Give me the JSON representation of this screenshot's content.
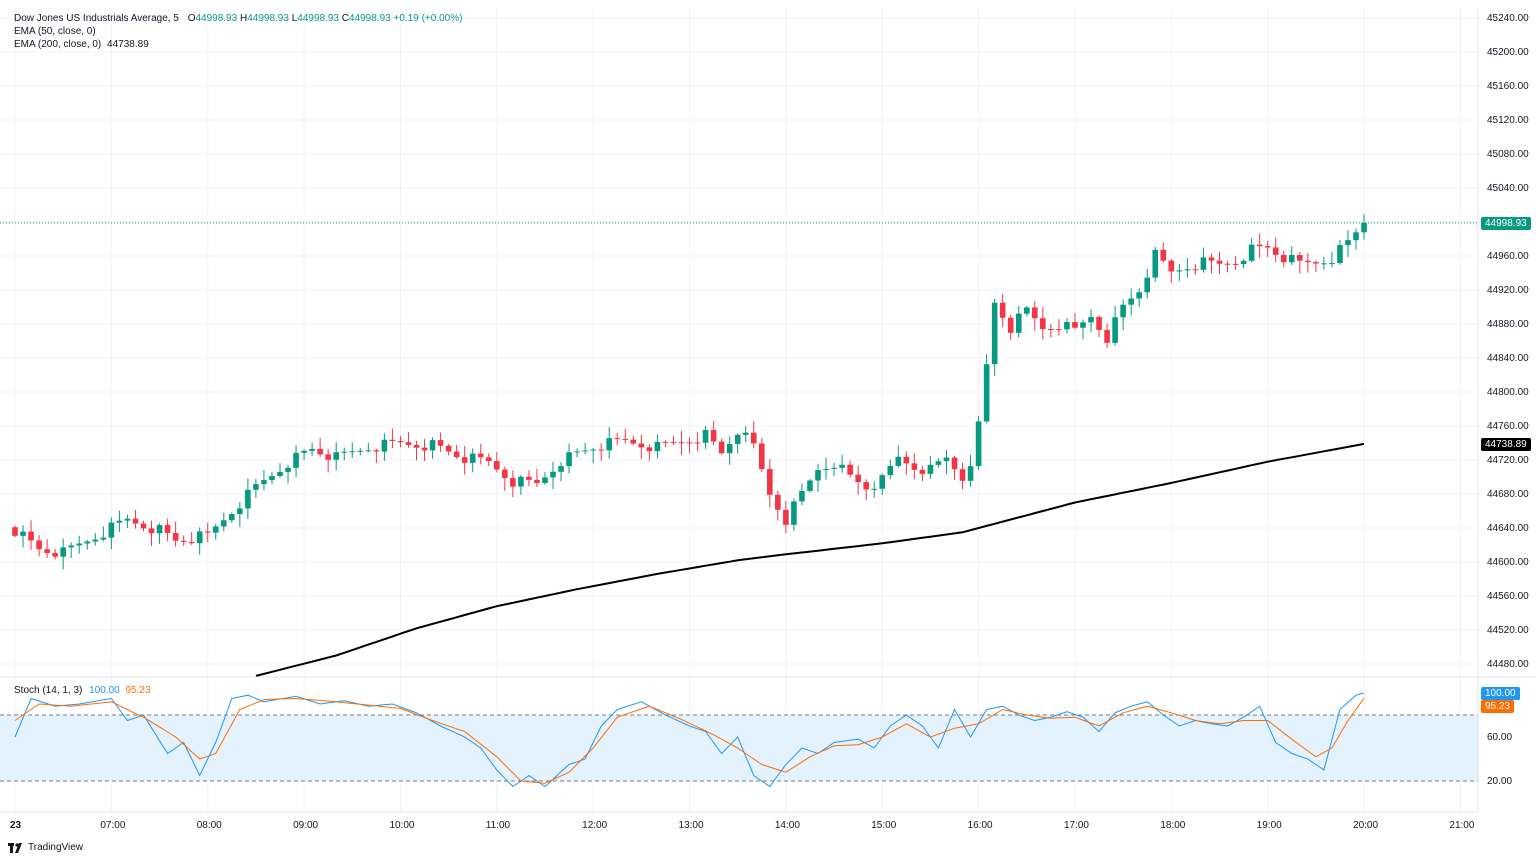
{
  "brand": {
    "name": "TradingView"
  },
  "legend": {
    "symbol": "Dow Jones US Industrials Average, 5",
    "o_label": "O",
    "o": "44998.93",
    "h_label": "H",
    "h": "44998.93",
    "l_label": "L",
    "l": "44998.93",
    "c_label": "C",
    "c": "44998.93",
    "change": "+0.19 (+0.00%)",
    "ema50": "EMA (50, close, 0)",
    "ema200": "EMA (200, close, 0)",
    "ema200_value": "44738.89"
  },
  "stoch_legend": {
    "name": "Stoch (14, 1, 3)",
    "k": "100.00",
    "d": "95.23"
  },
  "price_tags": {
    "last": "44998.93",
    "ema200": "44738.89",
    "stoch_k": "100.00",
    "stoch_d": "95.23"
  },
  "colors": {
    "up": "#089981",
    "down": "#f23645",
    "ema200": "#000000",
    "stoch_k": "#2196f3",
    "stoch_d": "#ff6d00",
    "band": "#e3f2fd"
  },
  "chart_data": [
    {
      "type": "candlestick",
      "title": "Dow Jones US Industrials Average, 5",
      "interval": "5 min",
      "y_ticks": [
        44480,
        44520,
        44560,
        44600,
        44640,
        44680,
        44720,
        44760,
        44800,
        44840,
        44880,
        44920,
        44960,
        45000,
        45040,
        45080,
        45120,
        45160,
        45200,
        45240
      ],
      "y_tick_labels": [
        "44480.00",
        "44520.00",
        "44560.00",
        "44600.00",
        "44640.00",
        "44680.00",
        "44720.00",
        "44760.00",
        "44800.00",
        "44840.00",
        "44880.00",
        "44920.00",
        "44960.00",
        "45000.00",
        "45040.00",
        "45080.00",
        "45120.00",
        "45160.00",
        "45200.00",
        "45240.00"
      ],
      "ylim": [
        44465,
        45250
      ],
      "x_ticks": [
        "23",
        "07:00",
        "08:00",
        "09:00",
        "10:00",
        "11:00",
        "12:00",
        "13:00",
        "14:00",
        "15:00",
        "16:00",
        "17:00",
        "18:00",
        "19:00",
        "20:00",
        "21:00"
      ],
      "x_tick_index": [
        0,
        12,
        24,
        36,
        48,
        60,
        72,
        84,
        96,
        108,
        120,
        132,
        144,
        156,
        168,
        180
      ],
      "anchors": [
        [
          0,
          44638
        ],
        [
          3,
          44615
        ],
        [
          6,
          44610
        ],
        [
          10,
          44630
        ],
        [
          14,
          44650
        ],
        [
          18,
          44638
        ],
        [
          20,
          44625
        ],
        [
          24,
          44630
        ],
        [
          27,
          44660
        ],
        [
          30,
          44688
        ],
        [
          34,
          44718
        ],
        [
          37,
          44733
        ],
        [
          40,
          44722
        ],
        [
          44,
          44735
        ],
        [
          48,
          44740
        ],
        [
          52,
          44738
        ],
        [
          56,
          44722
        ],
        [
          59,
          44717
        ],
        [
          62,
          44695
        ],
        [
          65,
          44692
        ],
        [
          68,
          44720
        ],
        [
          72,
          44735
        ],
        [
          76,
          44742
        ],
        [
          80,
          44735
        ],
        [
          84,
          44745
        ],
        [
          86,
          44750
        ],
        [
          88,
          44728
        ],
        [
          90,
          44755
        ],
        [
          92,
          44735
        ],
        [
          94,
          44680
        ],
        [
          96,
          44650
        ],
        [
          98,
          44680
        ],
        [
          100,
          44710
        ],
        [
          102,
          44718
        ],
        [
          104,
          44700
        ],
        [
          106,
          44688
        ],
        [
          108,
          44695
        ],
        [
          110,
          44722
        ],
        [
          112,
          44712
        ],
        [
          114,
          44708
        ],
        [
          116,
          44722
        ],
        [
          118,
          44700
        ],
        [
          119,
          44720
        ],
        [
          120,
          44760
        ],
        [
          121,
          44830
        ],
        [
          122,
          44905
        ],
        [
          123,
          44890
        ],
        [
          124,
          44875
        ],
        [
          126,
          44895
        ],
        [
          128,
          44875
        ],
        [
          130,
          44880
        ],
        [
          132,
          44872
        ],
        [
          134,
          44890
        ],
        [
          136,
          44865
        ],
        [
          138,
          44900
        ],
        [
          140,
          44920
        ],
        [
          142,
          44960
        ],
        [
          144,
          44940
        ],
        [
          146,
          44948
        ],
        [
          148,
          44952
        ],
        [
          150,
          44950
        ],
        [
          152,
          44955
        ],
        [
          154,
          44968
        ],
        [
          156,
          44970
        ],
        [
          158,
          44958
        ],
        [
          160,
          44950
        ],
        [
          162,
          44952
        ],
        [
          164,
          44958
        ],
        [
          166,
          44975
        ],
        [
          168,
          44998.93
        ]
      ],
      "ema200": [
        [
          30,
          44466
        ],
        [
          40,
          44490
        ],
        [
          50,
          44522
        ],
        [
          60,
          44548
        ],
        [
          70,
          44568
        ],
        [
          80,
          44586
        ],
        [
          90,
          44602
        ],
        [
          96,
          44609
        ],
        [
          108,
          44622
        ],
        [
          118,
          44635
        ],
        [
          122,
          44645
        ],
        [
          132,
          44670
        ],
        [
          144,
          44693
        ],
        [
          156,
          44718
        ],
        [
          168,
          44738.89
        ]
      ],
      "ema200_last": 44738.89,
      "last": 44998.93
    },
    {
      "type": "line",
      "title": "Stoch (14, 1, 3)",
      "ylim": [
        0,
        100
      ],
      "y_ticks": [
        20,
        60
      ],
      "y_tick_labels": [
        "20.00",
        "60.00"
      ],
      "band": [
        20,
        80
      ],
      "series": [
        {
          "name": "%K",
          "anchors": [
            [
              0,
              60
            ],
            [
              2,
              95
            ],
            [
              5,
              88
            ],
            [
              8,
              90
            ],
            [
              12,
              95
            ],
            [
              14,
              75
            ],
            [
              16,
              80
            ],
            [
              19,
              45
            ],
            [
              21,
              55
            ],
            [
              23,
              25
            ],
            [
              25,
              55
            ],
            [
              27,
              95
            ],
            [
              29,
              98
            ],
            [
              31,
              92
            ],
            [
              35,
              97
            ],
            [
              38,
              90
            ],
            [
              41,
              93
            ],
            [
              44,
              88
            ],
            [
              47,
              90
            ],
            [
              50,
              82
            ],
            [
              53,
              70
            ],
            [
              56,
              60
            ],
            [
              58,
              50
            ],
            [
              60,
              30
            ],
            [
              62,
              15
            ],
            [
              64,
              25
            ],
            [
              66,
              15
            ],
            [
              69,
              35
            ],
            [
              71,
              40
            ],
            [
              73,
              70
            ],
            [
              75,
              85
            ],
            [
              78,
              92
            ],
            [
              81,
              80
            ],
            [
              84,
              70
            ],
            [
              86,
              65
            ],
            [
              88,
              45
            ],
            [
              90,
              60
            ],
            [
              92,
              25
            ],
            [
              94,
              15
            ],
            [
              96,
              35
            ],
            [
              98,
              50
            ],
            [
              100,
              45
            ],
            [
              102,
              55
            ],
            [
              105,
              58
            ],
            [
              107,
              50
            ],
            [
              109,
              70
            ],
            [
              111,
              80
            ],
            [
              113,
              70
            ],
            [
              115,
              50
            ],
            [
              117,
              85
            ],
            [
              119,
              60
            ],
            [
              121,
              85
            ],
            [
              123,
              88
            ],
            [
              125,
              80
            ],
            [
              127,
              75
            ],
            [
              129,
              78
            ],
            [
              131,
              83
            ],
            [
              133,
              78
            ],
            [
              135,
              65
            ],
            [
              137,
              82
            ],
            [
              139,
              88
            ],
            [
              141,
              92
            ],
            [
              143,
              80
            ],
            [
              145,
              70
            ],
            [
              147,
              75
            ],
            [
              149,
              72
            ],
            [
              151,
              70
            ],
            [
              153,
              78
            ],
            [
              155,
              88
            ],
            [
              157,
              55
            ],
            [
              159,
              45
            ],
            [
              161,
              40
            ],
            [
              163,
              30
            ],
            [
              165,
              85
            ],
            [
              167,
              98
            ],
            [
              168,
              100
            ]
          ]
        },
        {
          "name": "%D",
          "anchors": [
            [
              0,
              75
            ],
            [
              3,
              90
            ],
            [
              7,
              88
            ],
            [
              12,
              92
            ],
            [
              16,
              78
            ],
            [
              20,
              60
            ],
            [
              23,
              40
            ],
            [
              25,
              45
            ],
            [
              28,
              85
            ],
            [
              31,
              94
            ],
            [
              35,
              95
            ],
            [
              40,
              92
            ],
            [
              44,
              89
            ],
            [
              48,
              86
            ],
            [
              52,
              75
            ],
            [
              56,
              65
            ],
            [
              60,
              42
            ],
            [
              63,
              20
            ],
            [
              66,
              18
            ],
            [
              69,
              28
            ],
            [
              72,
              50
            ],
            [
              75,
              78
            ],
            [
              79,
              88
            ],
            [
              83,
              76
            ],
            [
              87,
              62
            ],
            [
              90,
              50
            ],
            [
              93,
              35
            ],
            [
              96,
              28
            ],
            [
              99,
              42
            ],
            [
              102,
              52
            ],
            [
              105,
              53
            ],
            [
              108,
              60
            ],
            [
              111,
              72
            ],
            [
              114,
              60
            ],
            [
              117,
              68
            ],
            [
              120,
              72
            ],
            [
              123,
              85
            ],
            [
              126,
              80
            ],
            [
              129,
              77
            ],
            [
              132,
              78
            ],
            [
              135,
              70
            ],
            [
              138,
              82
            ],
            [
              141,
              88
            ],
            [
              144,
              82
            ],
            [
              147,
              75
            ],
            [
              150,
              72
            ],
            [
              153,
              75
            ],
            [
              156,
              75
            ],
            [
              159,
              58
            ],
            [
              162,
              42
            ],
            [
              164,
              50
            ],
            [
              166,
              75
            ],
            [
              168,
              95.23
            ]
          ]
        }
      ],
      "k_last": 100.0,
      "d_last": 95.23
    }
  ]
}
